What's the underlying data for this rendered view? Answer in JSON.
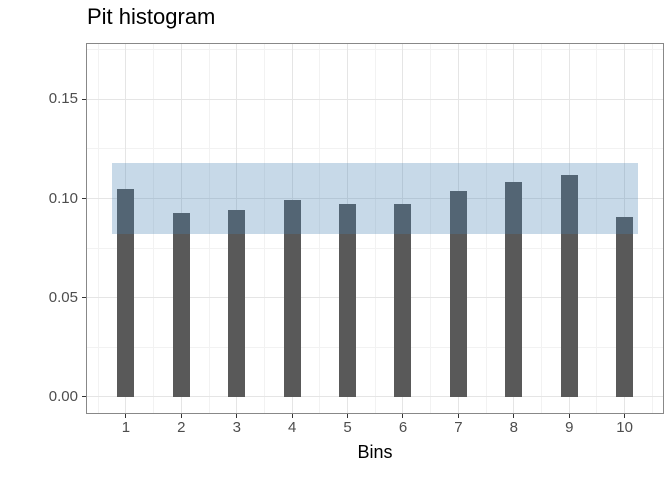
{
  "chart_data": {
    "type": "bar",
    "title": "Pit histogram",
    "xlabel": "Bins",
    "ylabel": "",
    "categories": [
      1,
      2,
      3,
      4,
      5,
      6,
      7,
      8,
      9,
      10
    ],
    "values": [
      0.105,
      0.0925,
      0.094,
      0.0995,
      0.097,
      0.0975,
      0.104,
      0.1085,
      0.112,
      0.0905
    ],
    "bar_color": "#595959",
    "band": {
      "xmin": 0.75,
      "xmax": 10.25,
      "ymin": 0.082,
      "ymax": 0.118,
      "color": "#4682B4",
      "alpha": 0.3
    },
    "y_ticks": [
      0.0,
      0.05,
      0.1,
      0.15
    ],
    "y_tick_labels": [
      "0.00",
      "0.05",
      "0.10",
      "0.15"
    ],
    "y_minor_ticks": [
      0.025,
      0.075,
      0.125,
      0.175
    ],
    "x_minor_ticks": [
      0.5,
      1.5,
      2.5,
      3.5,
      4.5,
      5.5,
      6.5,
      7.5,
      8.5,
      9.5,
      10.5
    ],
    "xlim": [
      0.28,
      10.71
    ],
    "ylim": [
      -0.0086,
      0.1784
    ],
    "grid": true,
    "legend": "none",
    "colors": {
      "grid_major": "#e5e5e5",
      "grid_minor": "#f2f2f2",
      "panel_border": "#888888",
      "tick_mark": "#333333",
      "tick_label": "#4d4d4d",
      "title": "#000000",
      "axis_title": "#000000"
    }
  }
}
